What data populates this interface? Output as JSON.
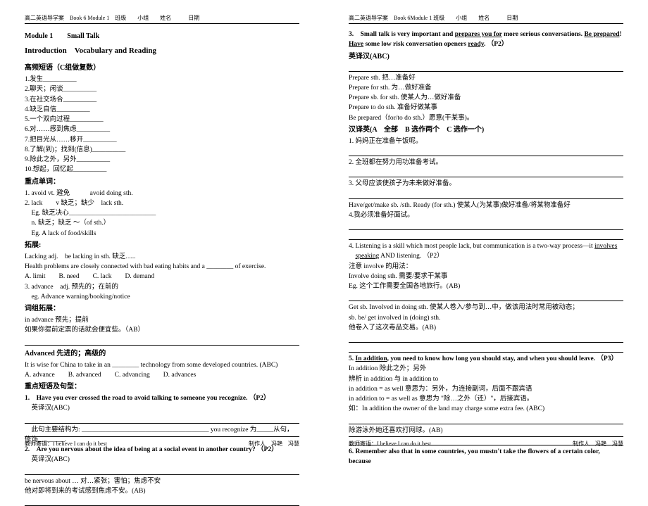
{
  "header": {
    "left": "高二英语导学案　Book 6 Module 1　班级　　小组　　姓名　　　日期",
    "right": "高二英语导学案　Book 6Module 1 班级　　小组　　姓名　　　日期"
  },
  "left_page": {
    "module": "Module 1　　Small Talk",
    "section": "Introduction　Vocabulary and Reading",
    "gaopin_title": "高频短语（C组做复数）",
    "gaopin": [
      "1.发生__________",
      "2.聊天；闲谈__________",
      "3.在社交场合__________",
      "4.缺乏自信__________",
      "5.一个双向过程__________",
      "6.对……感到焦虑__________",
      "7.把目光从……移开__________",
      "8.了解(到)；找到(信息)__________",
      "9.除此之外，另外__________",
      "10.想起，回忆起__________"
    ],
    "zhongdian_title": "重点单词：",
    "avoid": [
      "1. avoid vt. 避免　　　avoid doing sth.",
      "2. lack　　v 缺乏；缺少　lack sth.",
      "　Eg. 缺乏决心__________________________",
      "　n. 缺乏；缺乏 ～（of sth.）",
      "　Eg. A lack of food/skills"
    ],
    "tuozhan_title": "拓展:",
    "tuozhan": [
      "Lacking adj.　be lacking in sth. 缺乏…..",
      "Health problems are closely connected with bad eating habits and a ________ of exercise.",
      "A. limit　　B. need　　C. lack　　D. demand",
      "3. advance　adj. 预先的；在前的",
      "　eg. Advance warning/booking/notice"
    ],
    "cizu_title": "词组拓展：",
    "cizu": [
      "in advance 预先；提前",
      "如果你提前定票的话就会便宜些。（AB）"
    ],
    "adv_title": "Advanced 先进的；高级的",
    "adv": [
      "It is wise for China to take in an ________ technology from some developed countries. (ABC)",
      "A. advance　　B. advanced　　C. advancing　　D. advances"
    ],
    "zdjx_title": "重点短语及句型：",
    "zdjx": [
      {
        "bold": true,
        "text": "1.　Have you ever crossed the road to avoid talking to someone you recognize. （P2）"
      },
      {
        "text": "　英译汉(ABC)"
      },
      {
        "blank": true
      },
      {
        "text": "　此句主要结构为: ______________________________________ you recognize 为_____从句，修饰________."
      },
      {
        "bold": true,
        "text": "2.　Are you nervous about the idea of being at a social event in another country? （P2）",
        "under": "Are"
      },
      {
        "text": "　英译汉(ABC)"
      },
      {
        "blank": true
      },
      {
        "text": "be nervous about … 对…紧张；害怕；焦虑不安"
      },
      {
        "text": "他对即将到来的考试感到焦虑不安。(AB)"
      },
      {
        "blank": true
      }
    ]
  },
  "right_page": {
    "q3": [
      "3.　Small talk is very important and ",
      " more serious conversations. ",
      "! ",
      " some low risk conversation openers ",
      ". （P2）"
    ],
    "q3_under": [
      "prepares you for",
      "Be prepared",
      "Have",
      "ready"
    ],
    "yyh_title": "英译汉(ABC)",
    "prepare": [
      "Prepare sth. 把…准备好",
      "Prepare for sth. 为…做好准备",
      "Prepare sb. for sth. 使某人为…做好准备",
      "Prepare to do sth. 准备好做某事",
      "Be prepared（for/to do sth.）愿意(干某事)。"
    ],
    "hyy_title": "汉译英(A　全部　B 选作两个　C 选作一个)",
    "hyy": [
      "1. 妈妈正在准备午饭呢。",
      "",
      "2. 全班都在努力用功准备考试。",
      "",
      "3. 父母应该使孩子为未来做好准备。",
      ""
    ],
    "have_get": [
      "Have/get/make sb. /sth. Ready (for sth.) 使某人(为某事)做好准备/将某物准备好",
      "4.我必须准备好面试。"
    ],
    "q4": {
      "text": "4. Listening is a skill which most people lack, but communication is a two-way process—it ",
      "under1": "involves",
      "mid": " ",
      "under2": "speaking",
      "rest": " AND listening. （P2）"
    },
    "involve": [
      "注意 involve 的用法：",
      "Involve doing sth. 需要/要求干某事",
      "Eg. 这个工作需要全国各地旅行。(AB)"
    ],
    "getsb": [
      "Get sb. Involved in doing sth. 使某人卷入/参与到…中，做该用法时常用被动态；",
      "sb. be/ get involved in (doing) sth.",
      "他卷入了这次毒品交易。(AB)"
    ],
    "q5": {
      "text": "5. ",
      "under": "In addition",
      "rest": ", you need to know how long you should stay, and when you should leave. （P3）"
    },
    "inadd": [
      "In addition 除此之外；另外",
      "辨析 in addition 与 in addition to",
      "in addition = as well 意思为：另外，为连接副词，后面不跟宾语",
      "in addition to = as well as 意思为 \"除…之外（还）\"，后接宾语。",
      "如：In addition the owner of the land may charge some extra fee. (ABC)"
    ],
    "swim": "除游泳外她还喜欢打网球。(AB)",
    "q6": "6. Remember also that in some countries, you mustn't take the flowers of a certain color, because"
  },
  "footer": {
    "left": "教师寄语：I believe I can do it best",
    "right": "制作人　冯艳　冯慧"
  }
}
